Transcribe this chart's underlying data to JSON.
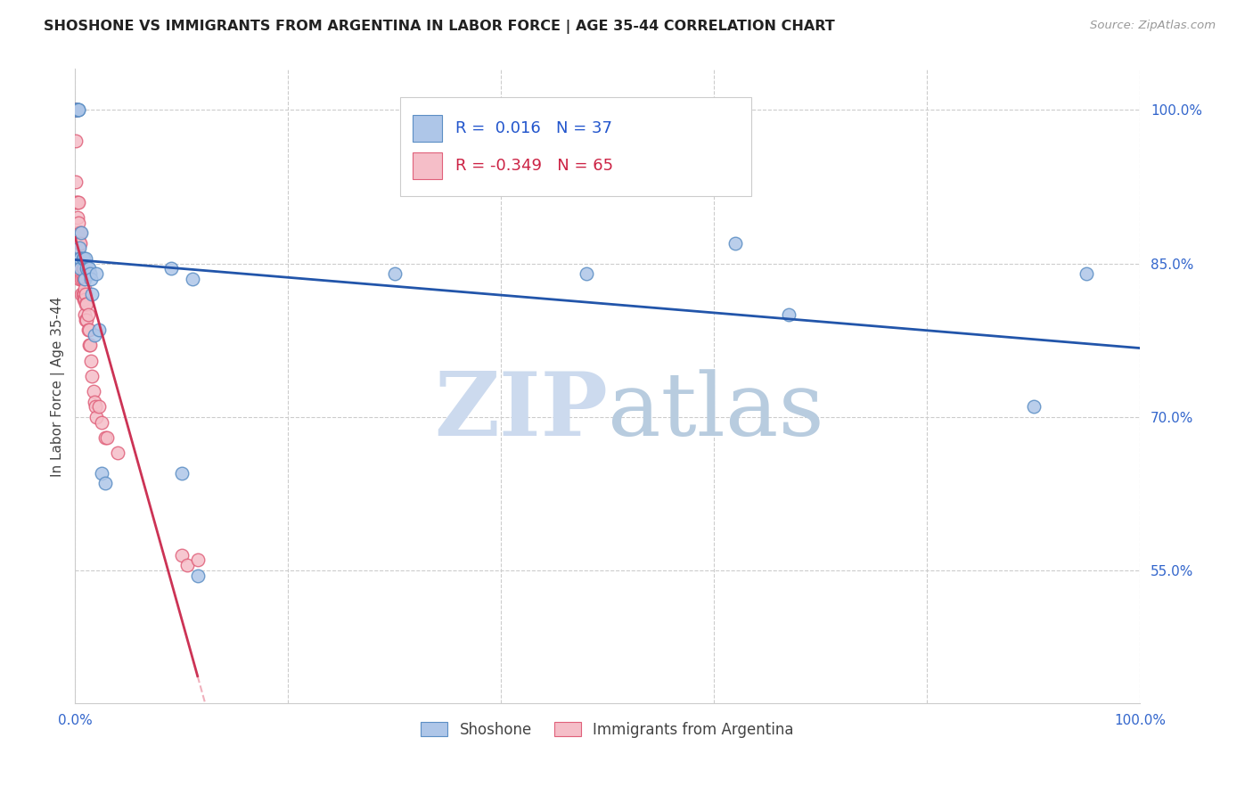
{
  "title": "SHOSHONE VS IMMIGRANTS FROM ARGENTINA IN LABOR FORCE | AGE 35-44 CORRELATION CHART",
  "source": "Source: ZipAtlas.com",
  "ylabel": "In Labor Force | Age 35-44",
  "xlim": [
    0.0,
    1.0
  ],
  "ylim": [
    0.42,
    1.04
  ],
  "x_ticks": [
    0.0,
    0.2,
    0.4,
    0.6,
    0.8,
    1.0
  ],
  "y_tick_values_right": [
    1.0,
    0.85,
    0.7,
    0.55
  ],
  "y_tick_labels_right": [
    "100.0%",
    "85.0%",
    "70.0%",
    "55.0%"
  ],
  "grid_color": "#cccccc",
  "background_color": "#ffffff",
  "shoshone_color": "#aec6e8",
  "shoshone_edge_color": "#5b8ec4",
  "argentina_color": "#f5bec8",
  "argentina_edge_color": "#e0607a",
  "shoshone_R": 0.016,
  "shoshone_N": 37,
  "argentina_R": -0.349,
  "argentina_N": 65,
  "trend_shoshone_color": "#2255aa",
  "trend_argentina_color": "#cc3355",
  "trend_argentina_dashed_color": "#f0b0bc",
  "watermark_zip": "ZIP",
  "watermark_atlas": "atlas",
  "watermark_color_zip": "#c8d8ec",
  "watermark_color_atlas": "#b8cce4",
  "legend_label_shoshone": "Shoshone",
  "legend_label_argentina": "Immigrants from Argentina",
  "shoshone_x": [
    0.0,
    0.001,
    0.001,
    0.002,
    0.002,
    0.003,
    0.003,
    0.004,
    0.004,
    0.005,
    0.005,
    0.006,
    0.007,
    0.008,
    0.009,
    0.01,
    0.011,
    0.012,
    0.013,
    0.014,
    0.015,
    0.016,
    0.018,
    0.02,
    0.022,
    0.025,
    0.028,
    0.09,
    0.1,
    0.11,
    0.115,
    0.3,
    0.48,
    0.62,
    0.67,
    0.9,
    0.95
  ],
  "shoshone_y": [
    1.0,
    1.0,
    1.0,
    1.0,
    1.0,
    1.0,
    1.0,
    0.865,
    0.855,
    0.855,
    0.845,
    0.88,
    0.855,
    0.855,
    0.835,
    0.855,
    0.845,
    0.845,
    0.845,
    0.84,
    0.835,
    0.82,
    0.78,
    0.84,
    0.785,
    0.645,
    0.635,
    0.845,
    0.645,
    0.835,
    0.545,
    0.84,
    0.84,
    0.87,
    0.8,
    0.71,
    0.84
  ],
  "argentina_x": [
    0.0,
    0.0,
    0.0,
    0.0,
    0.0,
    0.0,
    0.0,
    0.0,
    0.001,
    0.001,
    0.001,
    0.002,
    0.002,
    0.002,
    0.003,
    0.003,
    0.003,
    0.003,
    0.004,
    0.004,
    0.004,
    0.004,
    0.004,
    0.005,
    0.005,
    0.005,
    0.005,
    0.006,
    0.006,
    0.006,
    0.006,
    0.007,
    0.007,
    0.007,
    0.008,
    0.008,
    0.008,
    0.008,
    0.009,
    0.009,
    0.009,
    0.01,
    0.01,
    0.01,
    0.011,
    0.011,
    0.012,
    0.012,
    0.013,
    0.013,
    0.014,
    0.015,
    0.016,
    0.017,
    0.018,
    0.019,
    0.02,
    0.022,
    0.025,
    0.028,
    0.03,
    0.04,
    0.1,
    0.105,
    0.115
  ],
  "argentina_y": [
    1.0,
    1.0,
    1.0,
    1.0,
    1.0,
    1.0,
    1.0,
    1.0,
    0.97,
    0.93,
    0.91,
    0.91,
    0.895,
    0.88,
    0.91,
    0.89,
    0.875,
    0.86,
    0.87,
    0.855,
    0.845,
    0.84,
    0.835,
    0.88,
    0.87,
    0.855,
    0.845,
    0.855,
    0.84,
    0.835,
    0.82,
    0.845,
    0.835,
    0.82,
    0.845,
    0.835,
    0.82,
    0.815,
    0.825,
    0.815,
    0.8,
    0.82,
    0.81,
    0.795,
    0.81,
    0.795,
    0.8,
    0.785,
    0.785,
    0.77,
    0.77,
    0.755,
    0.74,
    0.725,
    0.715,
    0.71,
    0.7,
    0.71,
    0.695,
    0.68,
    0.68,
    0.665,
    0.565,
    0.555,
    0.56
  ]
}
